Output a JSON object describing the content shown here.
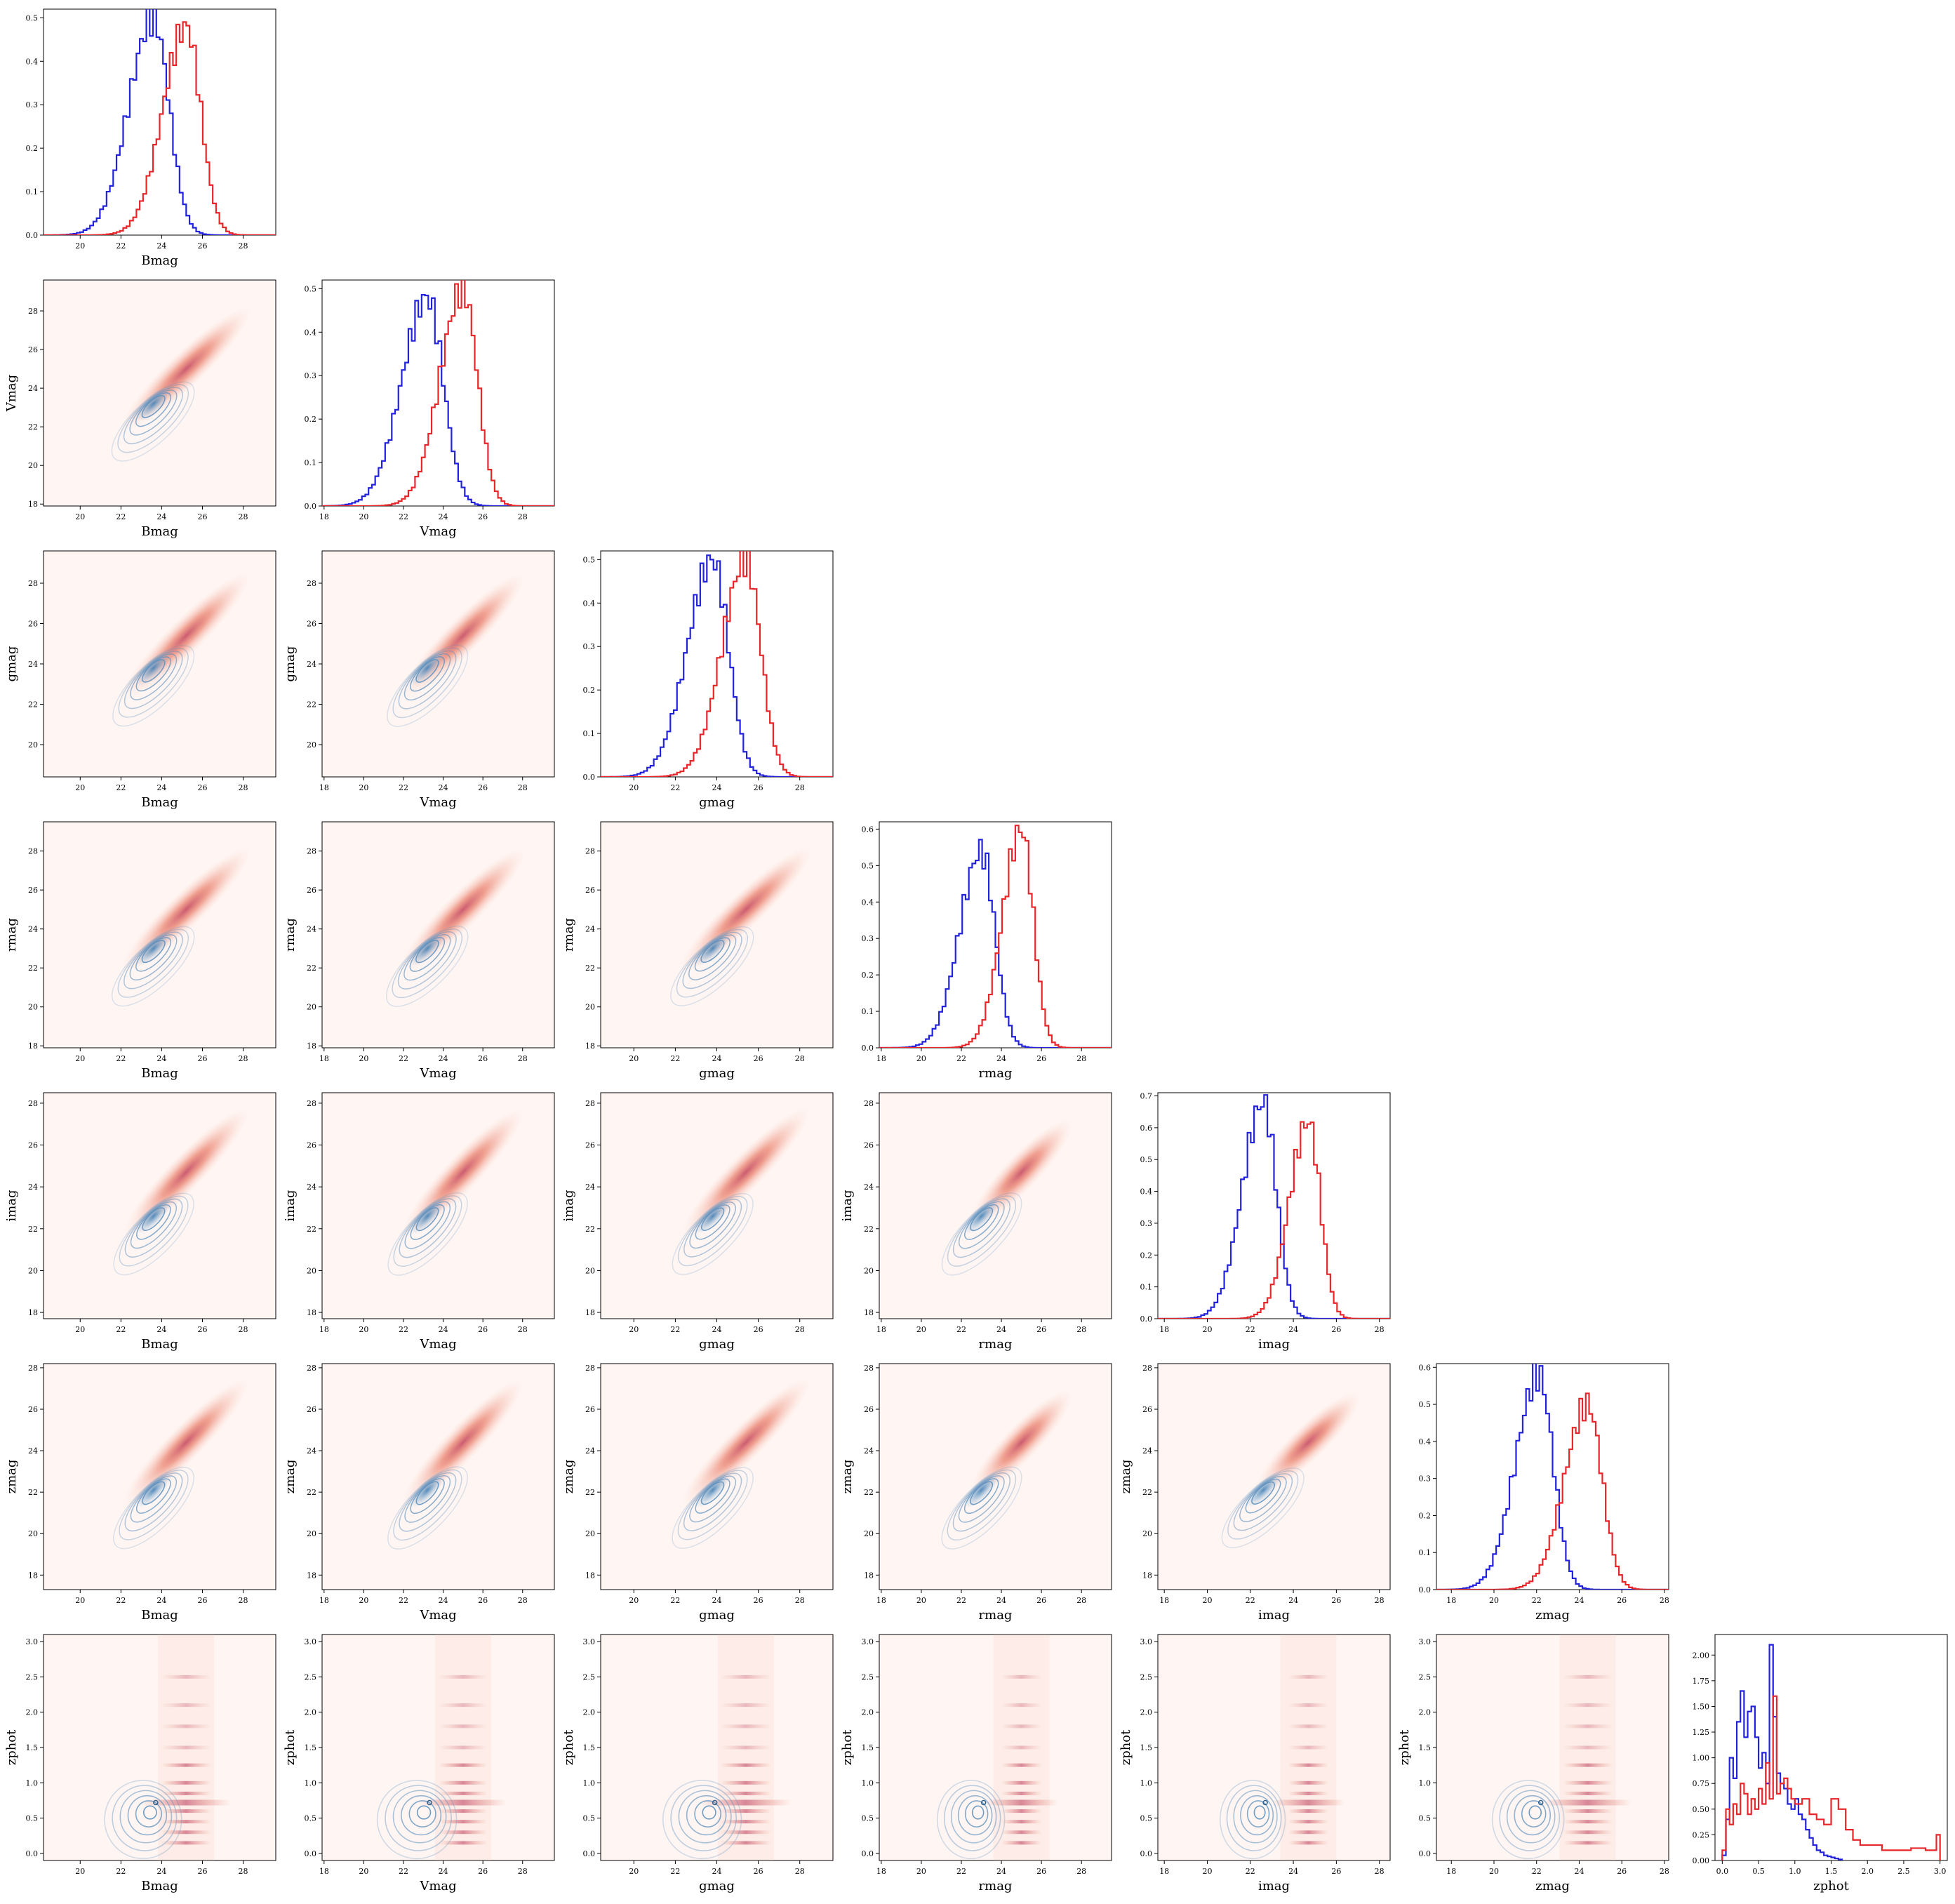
{
  "chart_data": {
    "type": "corner",
    "variables": [
      "Bmag",
      "Vmag",
      "gmag",
      "rmag",
      "imag",
      "zmag",
      "zphot"
    ],
    "tick_labels": {
      "Bmag": [
        "20",
        "22",
        "24",
        "26",
        "28"
      ],
      "Vmag": [
        "18",
        "20",
        "22",
        "24",
        "26",
        "28"
      ],
      "gmag": [
        "20",
        "22",
        "24",
        "26",
        "28"
      ],
      "rmag": [
        "18",
        "20",
        "22",
        "24",
        "26",
        "28"
      ],
      "imag": [
        "18",
        "20",
        "22",
        "24",
        "26",
        "28"
      ],
      "zmag": [
        "18",
        "20",
        "22",
        "24",
        "26",
        "28"
      ],
      "zphot": [
        "0.0",
        "0.5",
        "1.0",
        "1.5",
        "2.0",
        "2.5",
        "3.0"
      ]
    },
    "ranges": {
      "Bmag": [
        18.2,
        29.6
      ],
      "Vmag": [
        17.9,
        29.6
      ],
      "gmag": [
        18.4,
        29.6
      ],
      "rmag": [
        17.9,
        29.5
      ],
      "imag": [
        17.7,
        28.5
      ],
      "zmag": [
        17.3,
        28.2
      ],
      "zphot": [
        -0.1,
        3.1
      ]
    },
    "series_colors": {
      "blue": "#2222dd",
      "red": "#e8262a"
    },
    "kde_colors": {
      "blue_contours": "#5b8fbd",
      "red_shading": "#e8735c"
    },
    "series": {
      "blue": {
        "Bmag": {
          "mean": 23.6,
          "sd": 0.9,
          "peak": 0.5
        },
        "Vmag": {
          "mean": 23.2,
          "sd": 0.95,
          "peak": 0.48
        },
        "gmag": {
          "mean": 23.8,
          "sd": 0.9,
          "peak": 0.5
        },
        "rmag": {
          "mean": 23.0,
          "sd": 0.8,
          "peak": 0.54
        },
        "imag": {
          "mean": 22.6,
          "sd": 0.72,
          "peak": 0.68
        },
        "zmag": {
          "mean": 22.1,
          "sd": 0.8,
          "peak": 0.58
        },
        "zphot": {
          "x": [
            0.0,
            0.05,
            0.1,
            0.15,
            0.2,
            0.25,
            0.3,
            0.35,
            0.4,
            0.45,
            0.5,
            0.55,
            0.6,
            0.65,
            0.7,
            0.75,
            0.8,
            0.85,
            0.9,
            0.95,
            1.0,
            1.05,
            1.1,
            1.15,
            1.2,
            1.25,
            1.3,
            1.35,
            1.4,
            1.45,
            1.5,
            1.55,
            1.6
          ],
          "values": [
            0.05,
            0.4,
            1.0,
            0.8,
            1.35,
            1.65,
            1.2,
            1.45,
            1.5,
            1.2,
            0.9,
            1.05,
            0.75,
            2.1,
            1.4,
            0.85,
            0.75,
            0.7,
            0.55,
            0.5,
            0.6,
            0.45,
            0.4,
            0.3,
            0.22,
            0.15,
            0.1,
            0.08,
            0.05,
            0.04,
            0.03,
            0.02,
            0.01
          ]
        }
      },
      "red": {
        "Bmag": {
          "mean": 25.2,
          "sd": 0.85,
          "peak": 0.48
        },
        "Vmag": {
          "mean": 25.0,
          "sd": 0.85,
          "peak": 0.5
        },
        "gmag": {
          "mean": 25.4,
          "sd": 0.85,
          "peak": 0.5
        },
        "rmag": {
          "mean": 25.0,
          "sd": 0.7,
          "peak": 0.6
        },
        "imag": {
          "mean": 24.7,
          "sd": 0.65,
          "peak": 0.62
        },
        "zmag": {
          "mean": 24.4,
          "sd": 0.8,
          "peak": 0.5
        },
        "zphot": {
          "x": [
            0.0,
            0.05,
            0.1,
            0.15,
            0.2,
            0.25,
            0.3,
            0.35,
            0.4,
            0.45,
            0.5,
            0.55,
            0.6,
            0.65,
            0.7,
            0.75,
            0.8,
            0.85,
            0.9,
            0.95,
            1.0,
            1.1,
            1.2,
            1.3,
            1.4,
            1.5,
            1.6,
            1.7,
            1.8,
            1.9,
            2.0,
            2.2,
            2.4,
            2.6,
            2.8,
            2.95
          ],
          "values": [
            0.1,
            0.5,
            0.35,
            0.55,
            0.45,
            0.75,
            0.65,
            0.45,
            0.6,
            0.5,
            0.7,
            0.55,
            0.95,
            0.6,
            1.6,
            0.65,
            0.75,
            0.8,
            0.7,
            0.6,
            0.55,
            0.6,
            0.45,
            0.4,
            0.35,
            0.6,
            0.5,
            0.3,
            0.2,
            0.15,
            0.15,
            0.1,
            0.1,
            0.12,
            0.1,
            0.25
          ]
        }
      }
    },
    "diag_ylim": {
      "Bmag": [
        0,
        0.52
      ],
      "Vmag": [
        0,
        0.52
      ],
      "gmag": [
        0,
        0.52
      ],
      "rmag": [
        0,
        0.62
      ],
      "imag": [
        0,
        0.71
      ],
      "zmag": [
        0,
        0.61
      ],
      "zphot": [
        0,
        2.2
      ]
    },
    "diag_yticks": {
      "Bmag": [
        "0.0",
        "0.1",
        "0.2",
        "0.3",
        "0.4",
        "0.5"
      ],
      "Vmag": [
        "0.0",
        "0.1",
        "0.2",
        "0.3",
        "0.4",
        "0.5"
      ],
      "gmag": [
        "0.0",
        "0.1",
        "0.2",
        "0.3",
        "0.4",
        "0.5"
      ],
      "rmag": [
        "0.0",
        "0.1",
        "0.2",
        "0.3",
        "0.4",
        "0.5",
        "0.6"
      ],
      "imag": [
        "0.0",
        "0.1",
        "0.2",
        "0.3",
        "0.4",
        "0.5",
        "0.6",
        "0.7"
      ],
      "zmag": [
        "0.0",
        "0.1",
        "0.2",
        "0.3",
        "0.4",
        "0.5",
        "0.6"
      ],
      "zphot": [
        "0.00",
        "0.25",
        "0.50",
        "0.75",
        "1.00",
        "1.25",
        "1.50",
        "1.75",
        "2.00"
      ]
    }
  }
}
